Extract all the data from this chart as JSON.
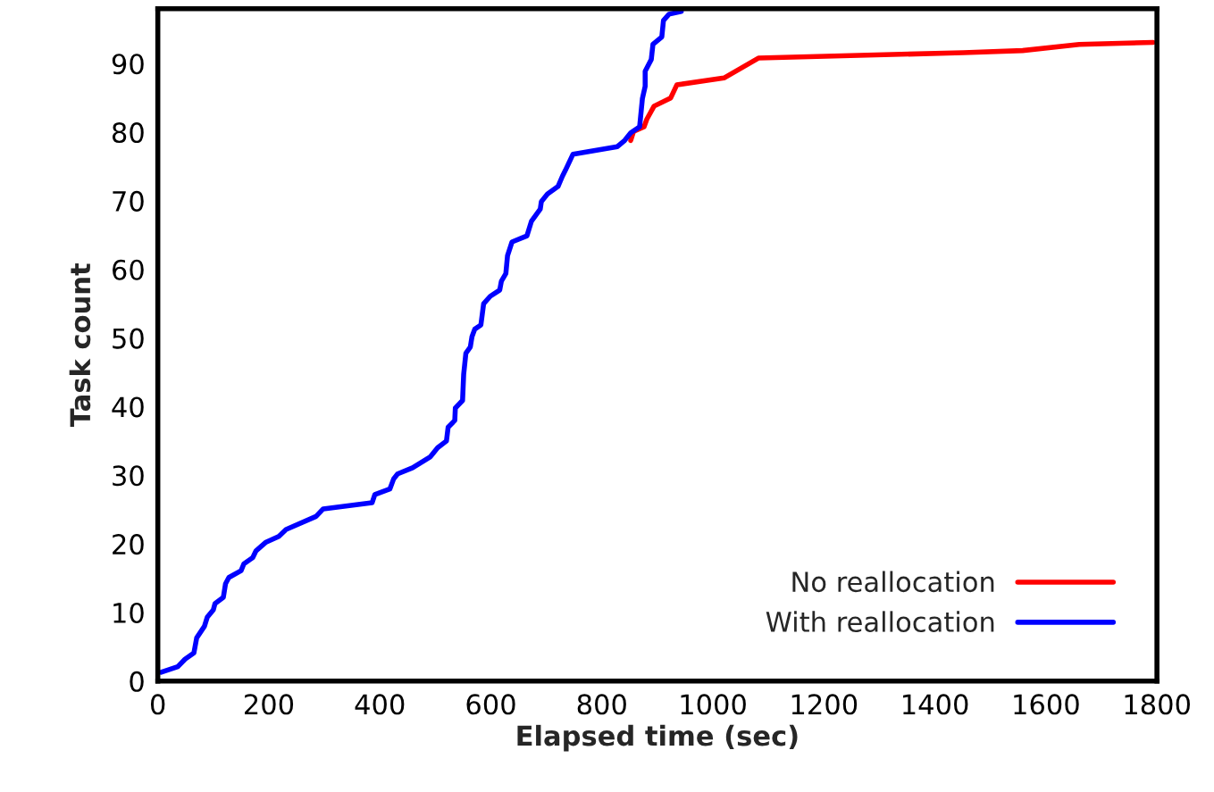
{
  "chart_data": {
    "type": "line",
    "xlabel": "Elapsed time (sec)",
    "ylabel": "Task count",
    "xlim": [
      0,
      1800
    ],
    "xticks": [
      0,
      200,
      400,
      600,
      800,
      1000,
      1200,
      1400,
      1600,
      1800
    ],
    "ylim": [
      0,
      98
    ],
    "yticks": [
      0,
      10,
      20,
      30,
      40,
      50,
      60,
      70,
      80,
      90
    ],
    "grid": false,
    "legend": "bottom right",
    "line_style": "solid",
    "marker": "none",
    "series": [
      {
        "name": "No reallocation",
        "color": "#ff0000",
        "x": [
          852,
          857,
          876,
          881,
          894,
          924,
          935,
          1020,
          1082,
          1451,
          1558,
          1660,
          1793
        ],
        "values": [
          78.8,
          80.1,
          80.8,
          81.9,
          83.8,
          85.0,
          86.9,
          87.9,
          90.8,
          91.6,
          91.9,
          92.8,
          93.1
        ]
      },
      {
        "name": "With reallocation",
        "color": "#0000ff",
        "x": [
          6,
          36,
          49,
          65,
          70,
          84,
          89,
          100,
          103,
          118,
          122,
          128,
          150,
          155,
          171,
          177,
          194,
          218,
          231,
          285,
          298,
          386,
          391,
          418,
          425,
          432,
          459,
          491,
          504,
          520,
          523,
          535,
          536,
          549,
          551,
          555,
          563,
          566,
          571,
          582,
          587,
          599,
          616,
          619,
          627,
          630,
          638,
          665,
          673,
          689,
          691,
          702,
          721,
          729,
          734,
          748,
          828,
          841,
          852,
          868,
          873,
          878,
          878,
          889,
          892,
          908,
          911,
          921,
          943
        ],
        "values": [
          1.3,
          2.1,
          3.2,
          4.1,
          6.3,
          8.0,
          9.3,
          10.4,
          11.3,
          12.2,
          14.2,
          15.1,
          16.1,
          17.1,
          18.0,
          19.0,
          20.2,
          21.1,
          22.1,
          24.0,
          25.1,
          26.0,
          27.2,
          28.0,
          29.5,
          30.2,
          31.1,
          32.7,
          34.0,
          35.0,
          37.0,
          38.0,
          39.8,
          40.9,
          44.7,
          47.8,
          48.7,
          50.2,
          51.3,
          51.9,
          55.0,
          56.1,
          57.0,
          58.3,
          59.4,
          62.0,
          64.0,
          64.9,
          67.0,
          68.8,
          69.9,
          71.0,
          72.1,
          73.6,
          74.4,
          76.8,
          77.9,
          78.8,
          79.9,
          80.8,
          84.9,
          86.7,
          88.9,
          90.6,
          92.8,
          93.9,
          96.3,
          97.2,
          97.6
        ]
      }
    ]
  }
}
